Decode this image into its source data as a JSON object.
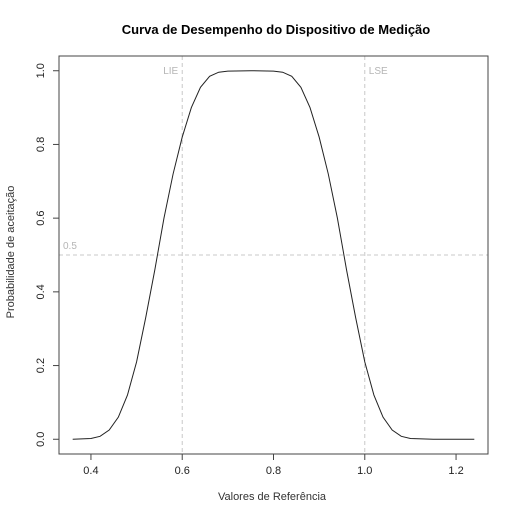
{
  "chart_data": {
    "type": "line",
    "title": "Curva de Desempenho do Dispositivo de Medição",
    "xlabel": "Valores de Referência",
    "ylabel": "Probabilidade de aceitação",
    "xlim": [
      0.33,
      1.27
    ],
    "ylim": [
      -0.04,
      1.04
    ],
    "x_ticks": [
      0.4,
      0.6,
      0.8,
      1.0,
      1.2
    ],
    "x_tick_labels": [
      "0.4",
      "0.6",
      "0.8",
      "1.0",
      "1.2"
    ],
    "y_ticks": [
      0.0,
      0.2,
      0.4,
      0.6,
      0.8,
      1.0
    ],
    "y_tick_labels": [
      "0.0",
      "0.2",
      "0.4",
      "0.6",
      "0.8",
      "1.0"
    ],
    "grid": false,
    "reference_lines": {
      "vertical": [
        {
          "label": "LIE",
          "x": 0.6
        },
        {
          "label": "LSE",
          "x": 1.0
        }
      ],
      "horizontal": [
        {
          "label": "0.5",
          "y": 0.5
        }
      ]
    },
    "series": [
      {
        "x": [
          0.36,
          0.4,
          0.42,
          0.44,
          0.46,
          0.48,
          0.5,
          0.52,
          0.54,
          0.55,
          0.56,
          0.58,
          0.6,
          0.62,
          0.64,
          0.66,
          0.68,
          0.7,
          0.75,
          0.8,
          0.82,
          0.84,
          0.86,
          0.88,
          0.9,
          0.92,
          0.94,
          0.95,
          0.96,
          0.98,
          1.0,
          1.02,
          1.04,
          1.06,
          1.08,
          1.1,
          1.15,
          1.2,
          1.24
        ],
        "y": [
          0.0,
          0.002,
          0.008,
          0.025,
          0.06,
          0.12,
          0.21,
          0.33,
          0.46,
          0.53,
          0.6,
          0.72,
          0.82,
          0.9,
          0.955,
          0.985,
          0.996,
          0.999,
          1.0,
          0.999,
          0.996,
          0.985,
          0.955,
          0.9,
          0.82,
          0.72,
          0.6,
          0.53,
          0.46,
          0.33,
          0.21,
          0.12,
          0.06,
          0.025,
          0.008,
          0.002,
          0.0,
          0.0,
          0.0
        ]
      }
    ]
  }
}
